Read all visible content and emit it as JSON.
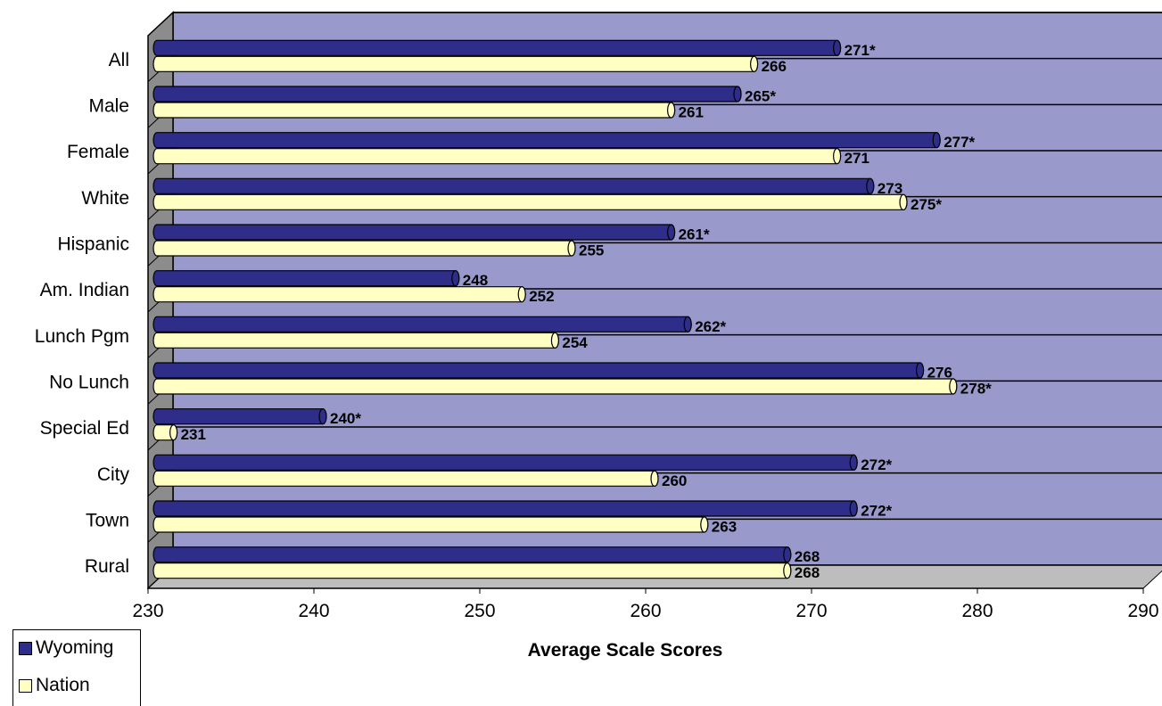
{
  "chart_data": {
    "type": "bar",
    "orientation": "horizontal",
    "categories": [
      "All",
      "Male",
      "Female",
      "White",
      "Hispanic",
      "Am. Indian",
      "Lunch Pgm",
      "No Lunch",
      "Special Ed",
      "City",
      "Town",
      "Rural"
    ],
    "series": [
      {
        "name": "Wyoming",
        "color": "#2e2e8a",
        "values": [
          271,
          265,
          277,
          273,
          261,
          248,
          262,
          276,
          240,
          272,
          272,
          268
        ],
        "labels": [
          "271*",
          "265*",
          "277*",
          "273",
          "261*",
          "248",
          "262*",
          "276",
          "240*",
          "272*",
          "272*",
          "268"
        ]
      },
      {
        "name": "Nation",
        "color": "#ffffc4",
        "values": [
          266,
          261,
          271,
          275,
          255,
          252,
          254,
          278,
          231,
          260,
          263,
          268
        ],
        "labels": [
          "266",
          "261",
          "271",
          "275*",
          "255",
          "252",
          "254",
          "278*",
          "231",
          "260",
          "263",
          "268"
        ]
      }
    ],
    "xlim": [
      230,
      290
    ],
    "xticks": [
      "230",
      "240",
      "250",
      "260",
      "270",
      "280",
      "290"
    ],
    "xlabel": "Average Scale Scores",
    "ylabel": "",
    "title": "",
    "grid": true,
    "legend": "bottom-left",
    "plot_background": "#9999cc"
  }
}
